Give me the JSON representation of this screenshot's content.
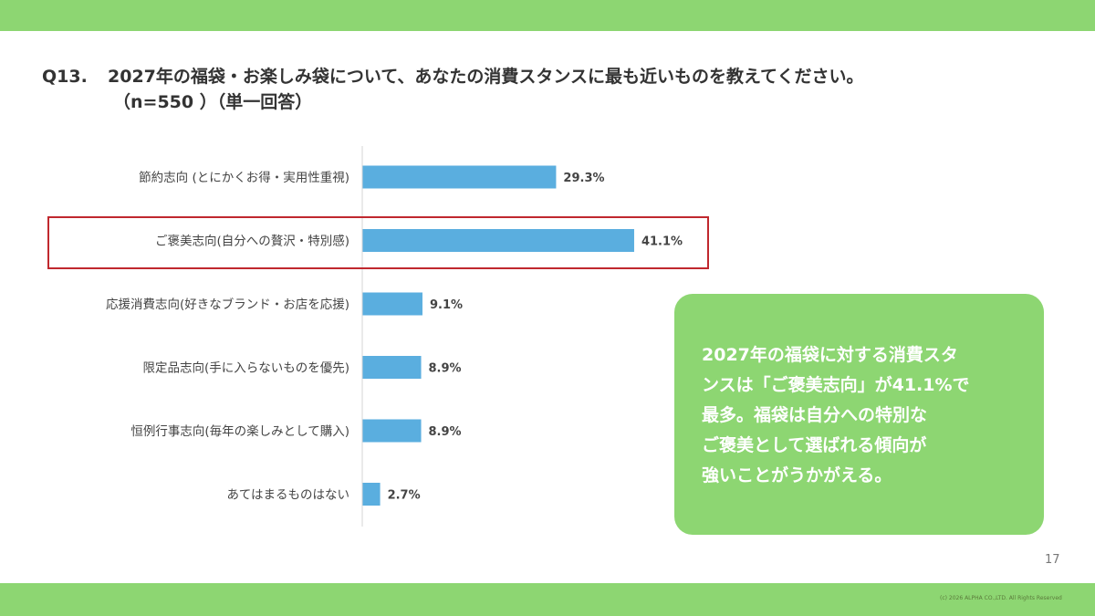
{
  "colors": {
    "band": "#8dd672",
    "bar": "#5aaedf",
    "highlight": "#c0282e",
    "callout_bg": "#8dd672"
  },
  "title": {
    "qnum": "Q13.",
    "line1": "2027年の福袋・お楽しみ袋について、あなたの消費スタンスに最も近いものを教えてください。",
    "line2": "（n=550 ）（単一回答）"
  },
  "chart_data": {
    "type": "bar",
    "orientation": "horizontal",
    "categories": [
      "節約志向 (とにかくお得・実用性重視)",
      "ご褒美志向(自分への贅沢・特別感)",
      "応援消費志向(好きなブランド・お店を応援)",
      "限定品志向(手に入らないものを優先)",
      "恒例行事志向(毎年の楽しみとして購入)",
      "あてはまるものはない"
    ],
    "values": [
      29.3,
      41.1,
      9.1,
      8.9,
      8.9,
      2.7
    ],
    "value_labels": [
      "29.3%",
      "41.1%",
      "9.1%",
      "8.9%",
      "8.9%",
      "2.7%"
    ],
    "highlighted_index": 1
  },
  "callout": {
    "lines": [
      "2027年の福袋に対する消費スタ",
      "ンスは「ご褒美志向」が41.1%で",
      "最多。福袋は自分への特別な",
      "ご褒美として選ばれる傾向が",
      "強いことがうかがえる。"
    ]
  },
  "footer": {
    "page_number": "17",
    "copyright": "(c) 2026 ALPHA CO.,LTD. All Rights Reserved"
  }
}
